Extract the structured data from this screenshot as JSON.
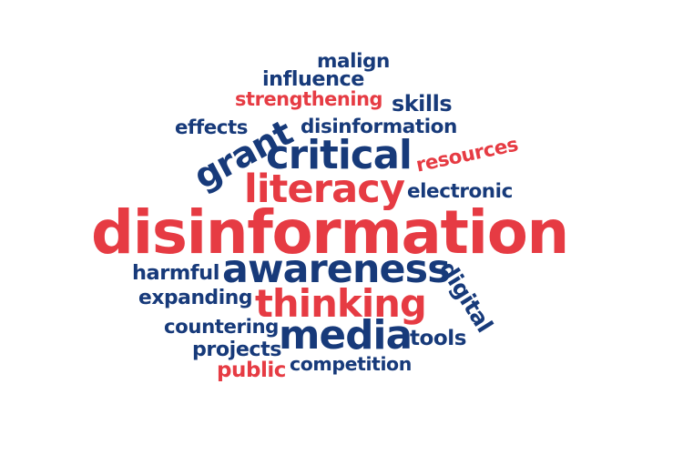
{
  "colors": {
    "red": "#e63b43",
    "navy": "#173a7a",
    "background": "#ffffff"
  },
  "words": {
    "malign": "malign",
    "influence": "influence",
    "strengthening": "strengthening",
    "skills": "skills",
    "effects": "effects",
    "disinformation_small": "disinformation",
    "grant": "grant",
    "critical": "critical",
    "resources": "resources",
    "literacy": "literacy",
    "electronic": "electronic",
    "disinformation_main": "disinformation",
    "harmful": "harmful",
    "awareness": "awareness",
    "expanding": "expanding",
    "thinking": "thinking",
    "digital": "digital",
    "countering": "countering",
    "media": "media",
    "tools": "tools",
    "projects": "projects",
    "public": "public",
    "competition": "competition"
  }
}
